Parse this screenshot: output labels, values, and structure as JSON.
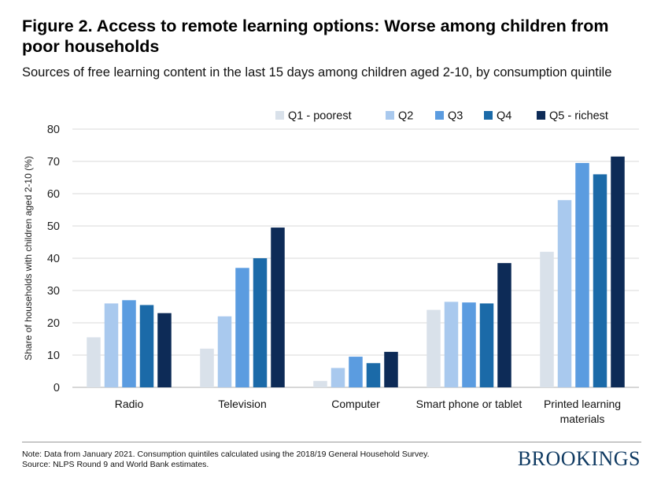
{
  "header": {
    "title": "Figure 2. Access to remote learning options: Worse among children from poor households",
    "subtitle": "Sources of free learning content in the last 15 days among children aged 2-10, by consumption quintile"
  },
  "footer": {
    "note": "Note: Data from January 2021. Consumption quintiles calculated using the 2018/19 General Household Survey.",
    "source": "Source: NLPS Round 9 and World Bank estimates.",
    "brand": "BROOKINGS"
  },
  "chart_data": {
    "type": "bar",
    "title": "Figure 2. Access to remote learning options: Worse among children from poor households",
    "subtitle": "Sources of free learning content in the last 15 days among children aged 2-10, by consumption quintile",
    "xlabel": "",
    "ylabel": "Share of households with children aged 2-10 (%)",
    "ylim": [
      0,
      80
    ],
    "yticks": [
      0,
      10,
      20,
      30,
      40,
      50,
      60,
      70,
      80
    ],
    "grid": true,
    "legend_position": "top-right",
    "categories": [
      "Radio",
      "Television",
      "Computer",
      "Smart phone or tablet",
      "Printed learning materials"
    ],
    "category_lines": [
      [
        "Radio"
      ],
      [
        "Television"
      ],
      [
        "Computer"
      ],
      [
        "Smart phone or tablet"
      ],
      [
        "Printed learning",
        "materials"
      ]
    ],
    "series": [
      {
        "name": "Q1 - poorest",
        "color": "#d9e1ea",
        "values": [
          15.5,
          12,
          2,
          24,
          42
        ]
      },
      {
        "name": "Q2",
        "color": "#a9c9ee",
        "values": [
          26,
          22,
          6,
          26.5,
          58
        ]
      },
      {
        "name": "Q3",
        "color": "#5b9ce0",
        "values": [
          27,
          37,
          9.5,
          26.3,
          69.5
        ]
      },
      {
        "name": "Q4",
        "color": "#1b6aa8",
        "values": [
          25.5,
          40,
          7.5,
          26,
          66
        ]
      },
      {
        "name": "Q5 - richest",
        "color": "#0d2b57",
        "values": [
          23,
          49.5,
          11,
          38.5,
          71.5
        ]
      }
    ]
  }
}
